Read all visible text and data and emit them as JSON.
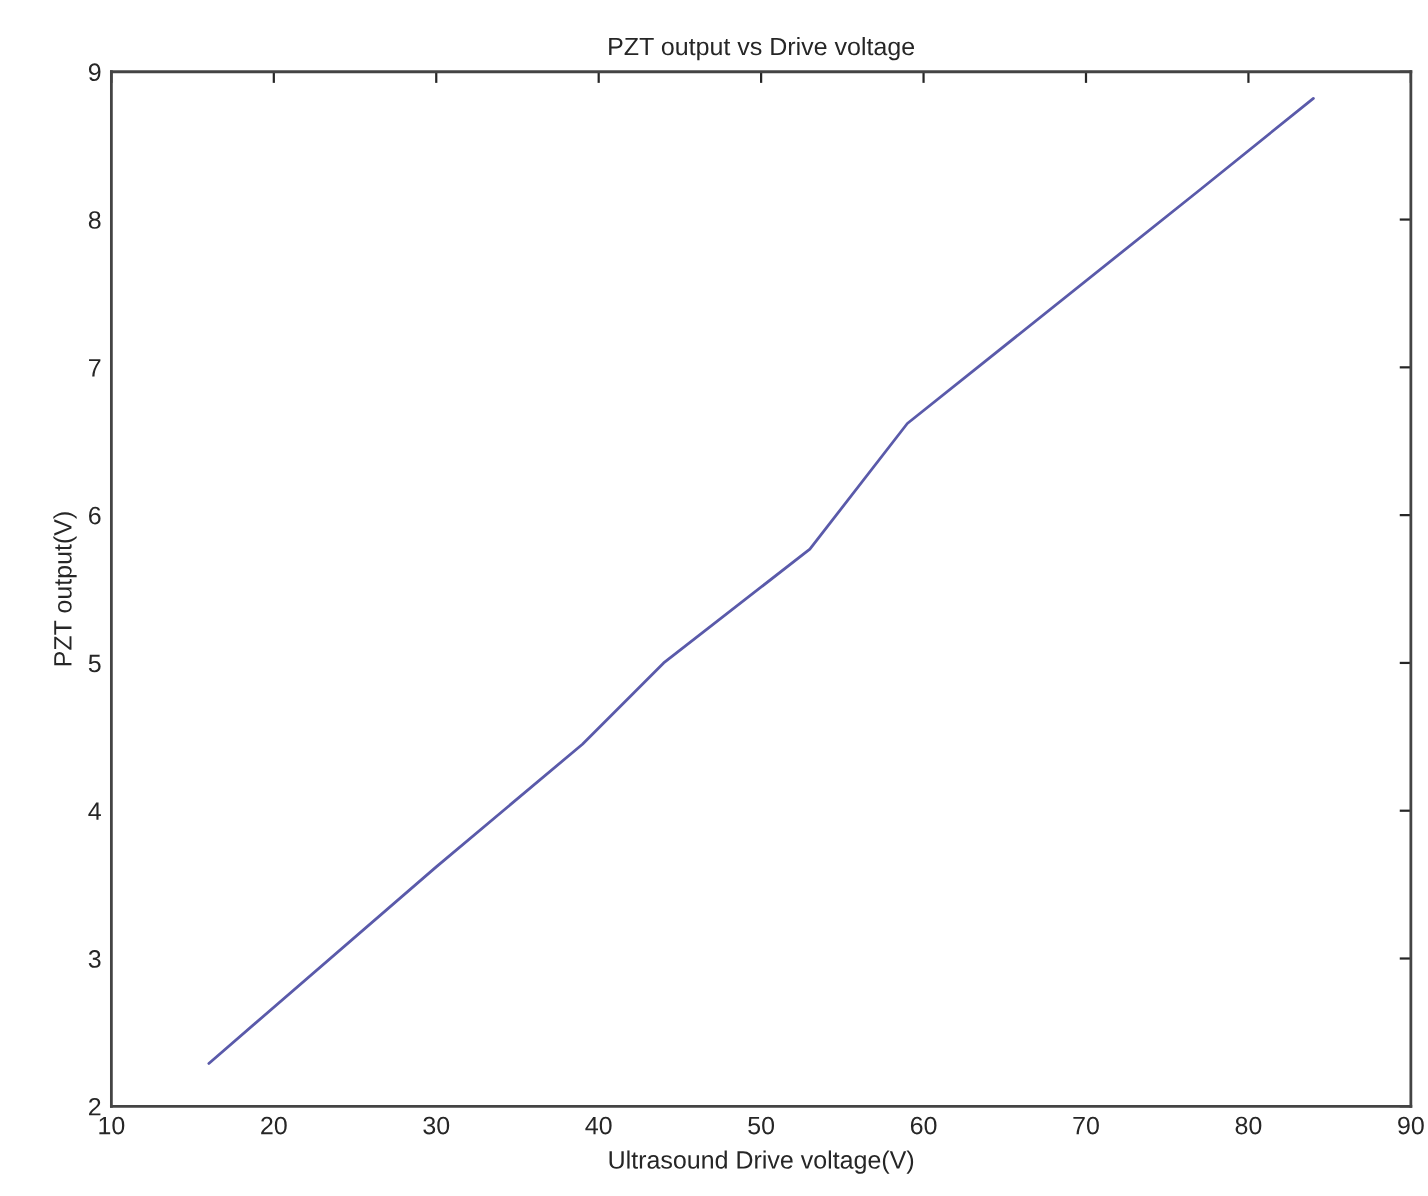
{
  "chart_data": {
    "type": "line",
    "title": "PZT output vs Drive voltage",
    "xlabel": "Ultrasound Drive voltage(V)",
    "ylabel": "PZT output(V)",
    "x": [
      16,
      30,
      39,
      44,
      53,
      59,
      77,
      84
    ],
    "series": [
      {
        "color": "#5a5aaa",
        "values": [
          2.29,
          3.62,
          4.45,
          5.0,
          5.77,
          6.62,
          8.2,
          8.82
        ]
      }
    ],
    "xlim": [
      10,
      90
    ],
    "ylim": [
      2,
      9
    ],
    "xticks": [
      10,
      20,
      30,
      40,
      50,
      60,
      70,
      80,
      90
    ],
    "yticks": [
      2,
      3,
      4,
      5,
      6,
      7,
      8,
      9
    ],
    "grid": false,
    "marker": "none",
    "line_style": "solid"
  }
}
